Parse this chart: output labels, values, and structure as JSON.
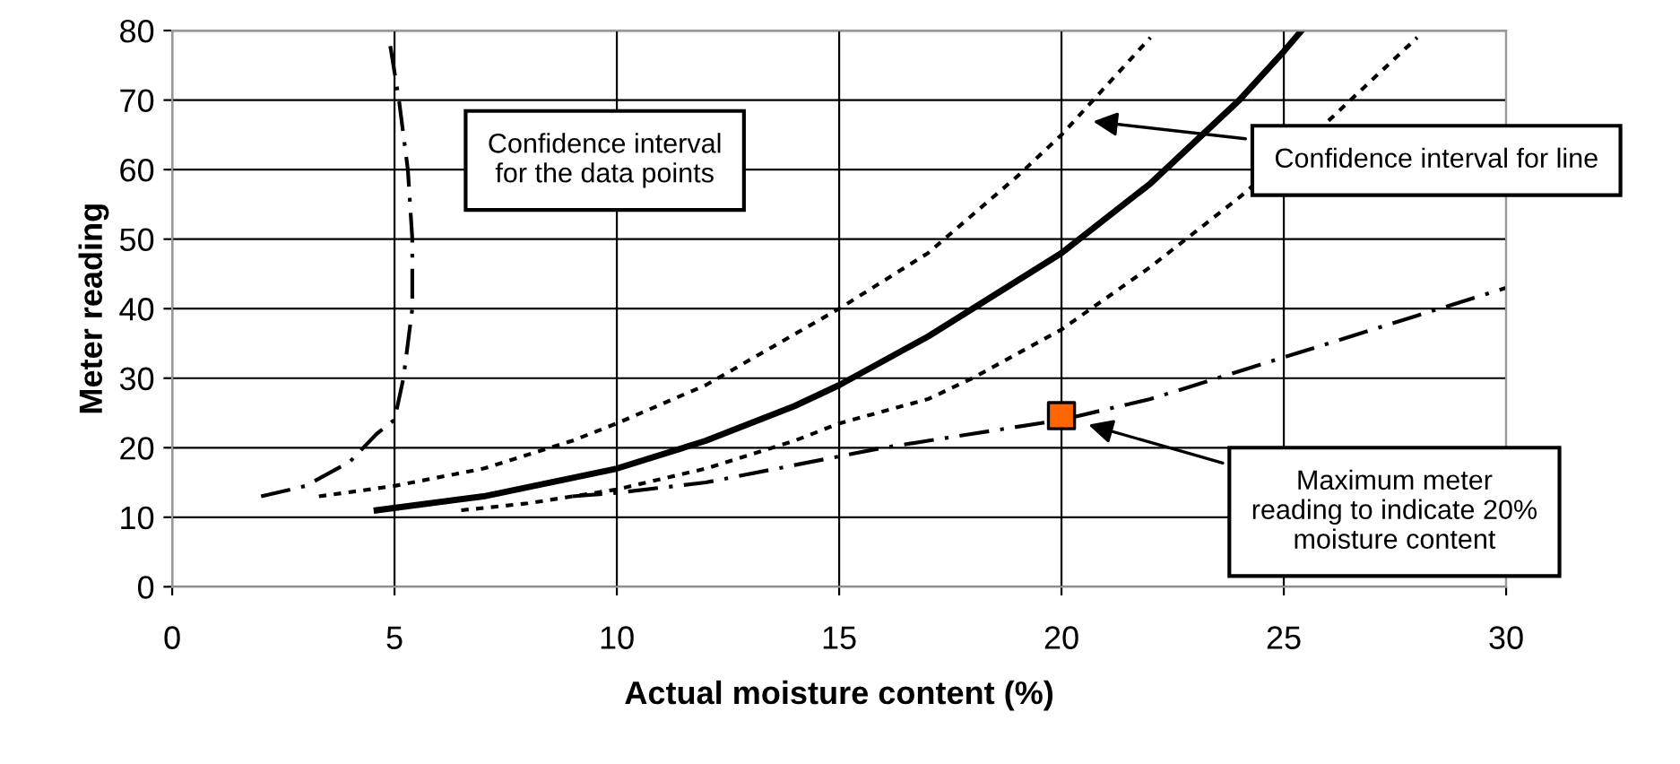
{
  "chart_data": {
    "type": "line",
    "xlabel": "Actual moisture content (%)",
    "ylabel": "Meter reading",
    "xlim": [
      0,
      30
    ],
    "xticks": [
      0,
      5,
      10,
      15,
      20,
      25,
      30
    ],
    "ylim": [
      0,
      80
    ],
    "yticks": [
      0,
      10,
      20,
      30,
      40,
      50,
      60,
      70,
      80
    ],
    "grid": true,
    "legend": false,
    "marker": "none",
    "series": [
      {
        "color": "#000000",
        "line_style": "solid",
        "x": [
          4.6,
          7,
          10,
          12,
          14,
          15,
          17,
          18,
          20,
          22,
          24,
          25,
          25.4
        ],
        "values": [
          11,
          13,
          17,
          21,
          26,
          29,
          36,
          40,
          48,
          58,
          70,
          77,
          80
        ]
      },
      {
        "color": "#000000",
        "line_style": "dotted",
        "x": [
          3.3,
          5,
          7,
          9,
          10,
          12,
          15,
          17,
          19,
          20,
          21,
          22
        ],
        "values": [
          13,
          14.5,
          17,
          21,
          23.5,
          29,
          40,
          48,
          59,
          65,
          72,
          79
        ]
      },
      {
        "color": "#000000",
        "line_style": "dotted",
        "x": [
          6.5,
          8,
          10,
          12,
          14,
          15,
          17,
          18,
          20,
          22,
          24,
          26,
          28
        ],
        "values": [
          11,
          12,
          14,
          17,
          21,
          23.5,
          27,
          30,
          37,
          46,
          56,
          67,
          79
        ]
      },
      {
        "color": "#000000",
        "line_style": "dashed",
        "x": [
          9,
          10,
          12,
          14,
          16,
          18,
          20,
          21,
          22,
          25,
          28,
          30
        ],
        "values": [
          13,
          13.5,
          15,
          17.5,
          20,
          22,
          24,
          25.5,
          27,
          33,
          39,
          43
        ]
      },
      {
        "color": "#000000",
        "line_style": "dashed",
        "x": [
          2,
          3,
          4,
          4.6,
          5,
          5.2,
          5.4,
          5.4,
          5.3,
          5.1,
          4.9
        ],
        "values": [
          13,
          14.5,
          18,
          22,
          24,
          30,
          40,
          50,
          60,
          70,
          78
        ]
      },
      {
        "type": "scatter",
        "marker": "square",
        "color": "#ff6600",
        "x": [
          20
        ],
        "values": [
          24.6
        ]
      }
    ],
    "annotations": [
      "Confidence interval\nfor the data points",
      {
        "text": "Confidence interval for line",
        "x": 20.6,
        "y": 67
      },
      {
        "text": "Maximum meter\nreading to indicate 20%\nmoisture content",
        "x": 20.5,
        "y": 23.5
      }
    ]
  }
}
